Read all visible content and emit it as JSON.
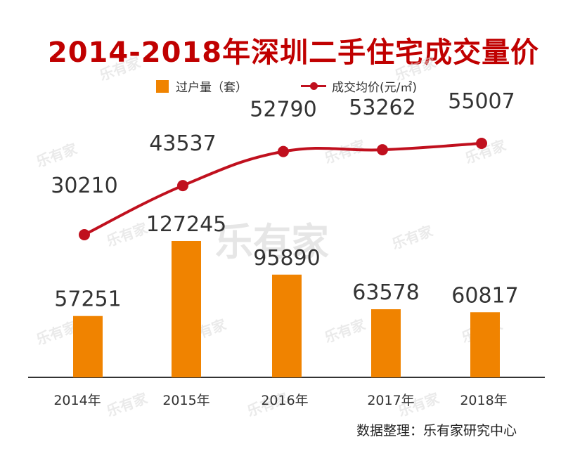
{
  "header": {
    "title": "2014-2018年深圳二手住宅成交量价"
  },
  "watermark": {
    "text": "乐有家"
  },
  "legend": {
    "bar_label": "过户量（套）",
    "line_label": "成交均价(元/㎡)"
  },
  "colors": {
    "title": "#c00000",
    "bar": "#f08300",
    "line": "#c0101e",
    "axis": "#333333",
    "label": "#333333"
  },
  "footer": {
    "source": "数据整理：乐有家研究中心"
  },
  "chart_data": {
    "type": "bar",
    "title": "2014-2018年深圳二手住宅成交量价",
    "categories": [
      "2014年",
      "2015年",
      "2016年",
      "2017年",
      "2018年"
    ],
    "series": [
      {
        "name": "过户量（套）",
        "type": "bar",
        "values": [
          57251,
          127245,
          95890,
          63578,
          60817
        ]
      },
      {
        "name": "成交均价(元/㎡)",
        "type": "line",
        "values": [
          30210,
          43537,
          52790,
          53262,
          55007
        ]
      }
    ],
    "bar_labels": [
      "57251",
      "127245",
      "95890",
      "63578",
      "60817"
    ],
    "line_labels": [
      "30210",
      "43537",
      "52790",
      "53262",
      "55007"
    ],
    "grid": false,
    "legend_position": "top"
  }
}
